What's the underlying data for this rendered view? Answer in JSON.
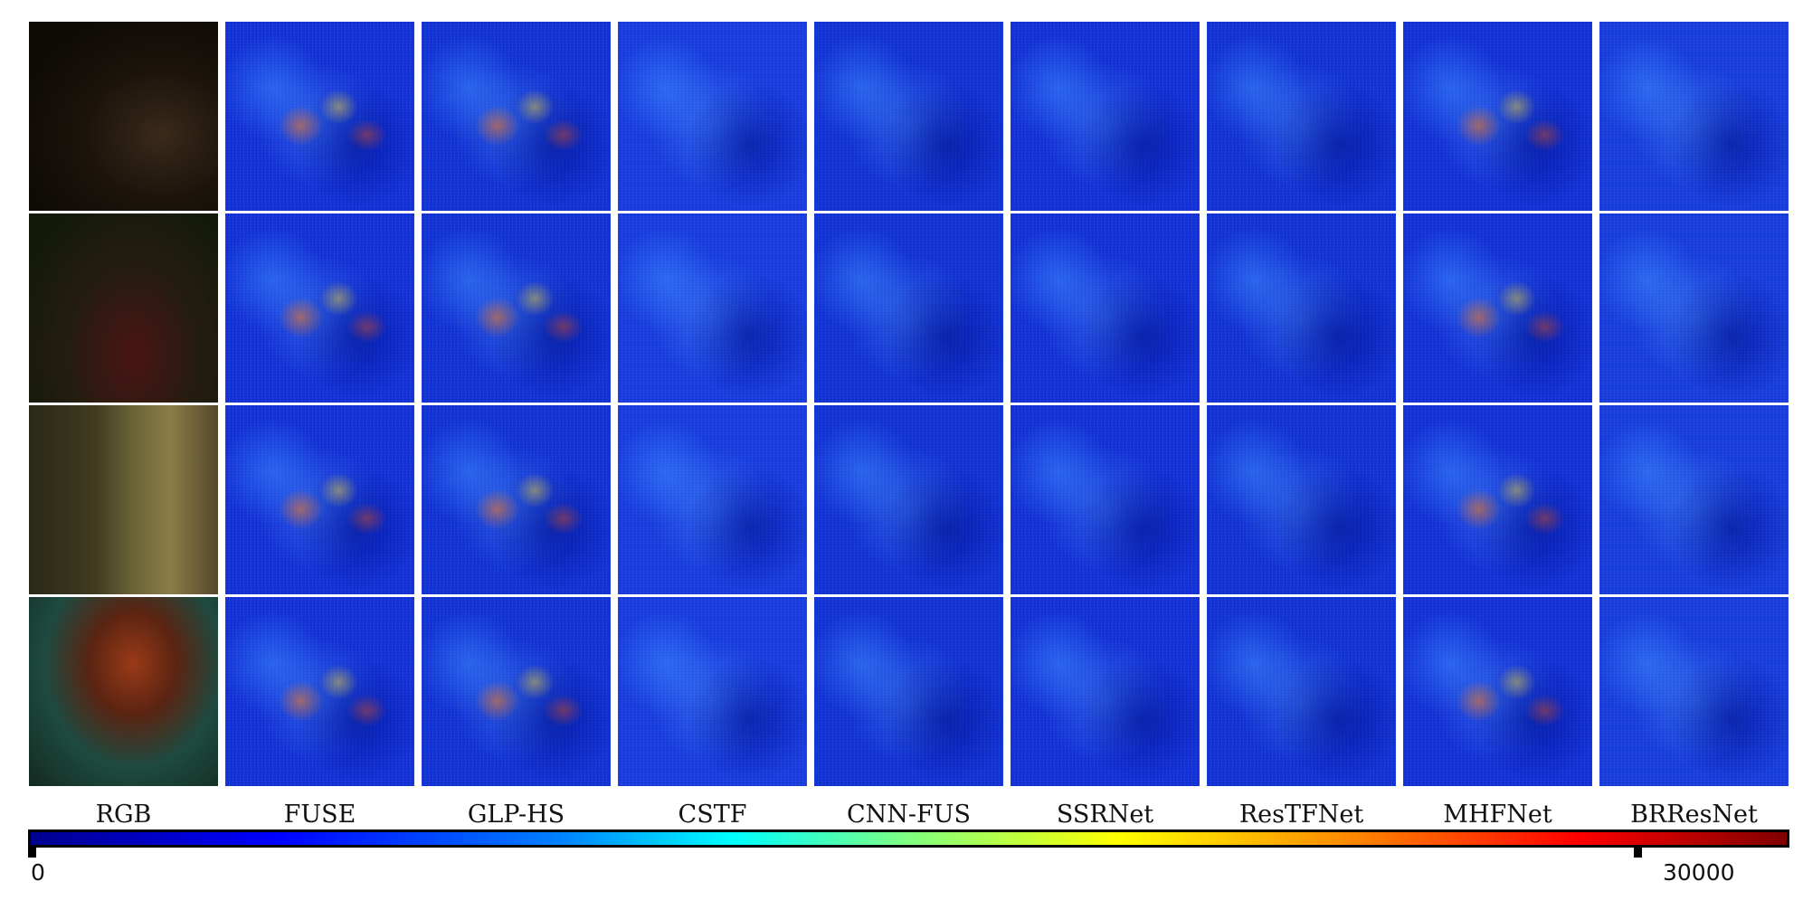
{
  "columns": [
    "RGB",
    "FUSE",
    "GLP-HS",
    "CSTF",
    "CNN-FUS",
    "SSRNet",
    "ResTFNet",
    "MHFNet",
    "BRResNet"
  ],
  "colorbar": {
    "min_label": "0",
    "max_label": "30000",
    "colormap": "jet",
    "colors": [
      "#00008f",
      "#0000ff",
      "#0080ff",
      "#00ffff",
      "#80ff80",
      "#ffff00",
      "#ff8000",
      "#ff0000",
      "#800000"
    ]
  }
}
